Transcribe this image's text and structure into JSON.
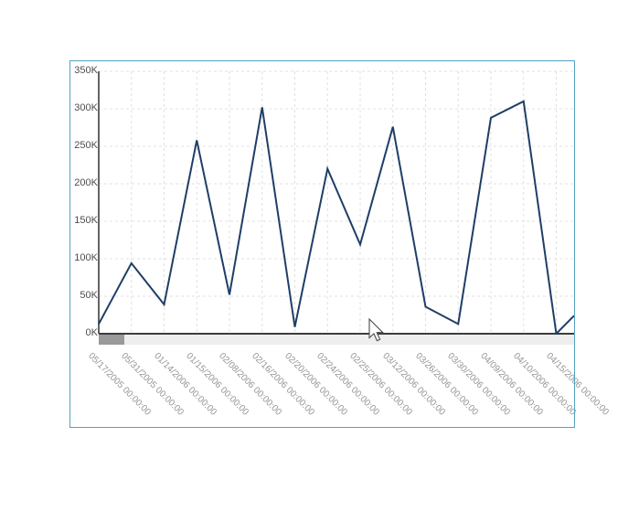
{
  "panel": {
    "border_color": "#53a2c2",
    "background": "#ffffff"
  },
  "chart_data": {
    "type": "line",
    "title": "",
    "xlabel": "",
    "ylabel": "",
    "categories": [
      "05/17/2005 00:00:00",
      "05/31/2005 00:00:00",
      "01/14/2006 00:00:00",
      "01/15/2006 00:00:00",
      "02/08/2006 00:00:00",
      "02/16/2006 00:00:00",
      "02/20/2006 00:00:00",
      "02/24/2006 00:00:00",
      "02/25/2006 00:00:00",
      "03/12/2006 00:00:00",
      "03/26/2006 00:00:00",
      "03/30/2006 00:00:00",
      "04/09/2006 00:00:00",
      "04/10/2006 00:00:00",
      "04/15/2006 00:00:00"
    ],
    "values_k": [
      13,
      94,
      39,
      258,
      52,
      302,
      9,
      220,
      119,
      276,
      36,
      13,
      288,
      310,
      0
    ],
    "edge_continuation_value_k": 24,
    "value_unit": "K",
    "ylim_k": [
      0,
      350
    ],
    "ytick_step_k": 50,
    "ytick_labels": [
      "0K",
      "50K",
      "100K",
      "150K",
      "200K",
      "250K",
      "300K",
      "350K"
    ],
    "grid": true,
    "legend": false,
    "series_color": "#1f3e68",
    "axis_color": "#3c3c3c",
    "grid_color": "#e0e0e0",
    "y_label_color": "#4d4d4d",
    "x_label_color": "#969696"
  },
  "scrollbar": {
    "track_color": "#eeeeee",
    "thumb_color": "#9a9a9a"
  }
}
